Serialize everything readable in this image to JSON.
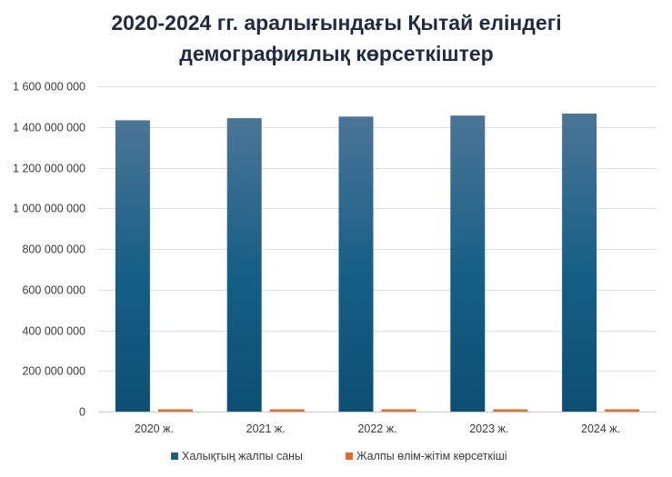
{
  "chart_data": {
    "type": "bar",
    "title_lines": [
      "2020-2024 гг. аралығындағы Қытай еліндегі",
      "демографиялық көрсеткіштер"
    ],
    "xlabel": "",
    "ylabel": "",
    "categories": [
      "2020 ж.",
      "2021 ж.",
      "2022 ж.",
      "2023 ж.",
      "2024 ж."
    ],
    "series": [
      {
        "name": "Халықтың жалпы саны",
        "color": "#1f5e84",
        "values": [
          1433000000,
          1443000000,
          1451000000,
          1456000000,
          1466000000
        ]
      },
      {
        "name": "Жалпы өлім-жітім көрсеткіші",
        "color": "#e86a2a",
        "values": [
          10300000,
          10200000,
          10400000,
          11100000,
          10900000
        ]
      }
    ],
    "ylim": [
      0,
      1600000000
    ],
    "yticks": [
      0,
      200000000,
      400000000,
      600000000,
      800000000,
      1000000000,
      1200000000,
      1400000000,
      1600000000
    ],
    "ytick_labels": [
      "0",
      "200 000 000",
      "400 000 000",
      "600 000 000",
      "800 000 000",
      "1 000 000 000",
      "1 200 000 000",
      "1 400 000 000",
      "1 600 000 000"
    ],
    "grid": true,
    "legend_position": "bottom"
  }
}
